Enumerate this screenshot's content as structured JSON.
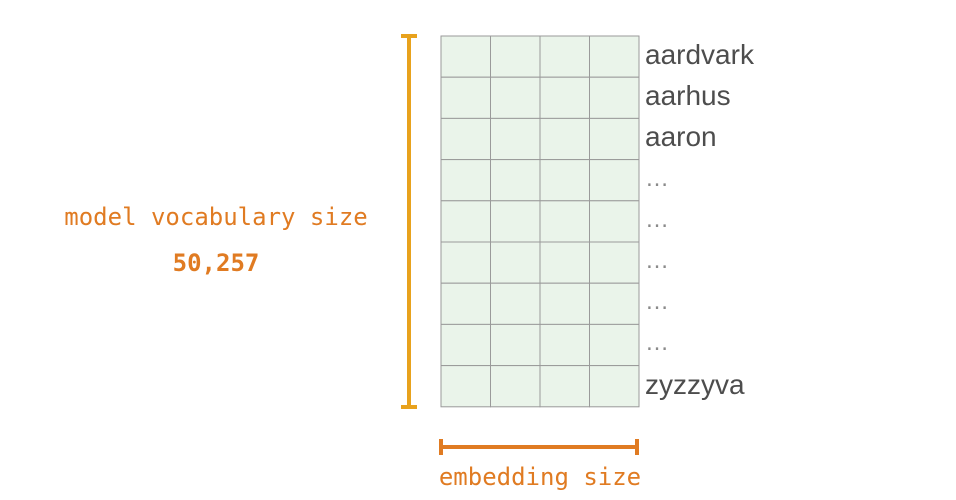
{
  "labels": {
    "vocabulary_title": "model vocabulary size",
    "vocabulary_value": "50,257",
    "embedding_title": "embedding size"
  },
  "words": [
    "aardvark",
    "aarhus",
    "aaron",
    "…",
    "…",
    "…",
    "…",
    "…",
    "zyzzyva"
  ],
  "colors": {
    "accent": "#e8a21d",
    "text_accent": "#e07b22",
    "cell_fill": "#eaf4ea",
    "grid_line": "#9a9a9a"
  },
  "matrix": {
    "rows": 9,
    "columns": 4
  }
}
